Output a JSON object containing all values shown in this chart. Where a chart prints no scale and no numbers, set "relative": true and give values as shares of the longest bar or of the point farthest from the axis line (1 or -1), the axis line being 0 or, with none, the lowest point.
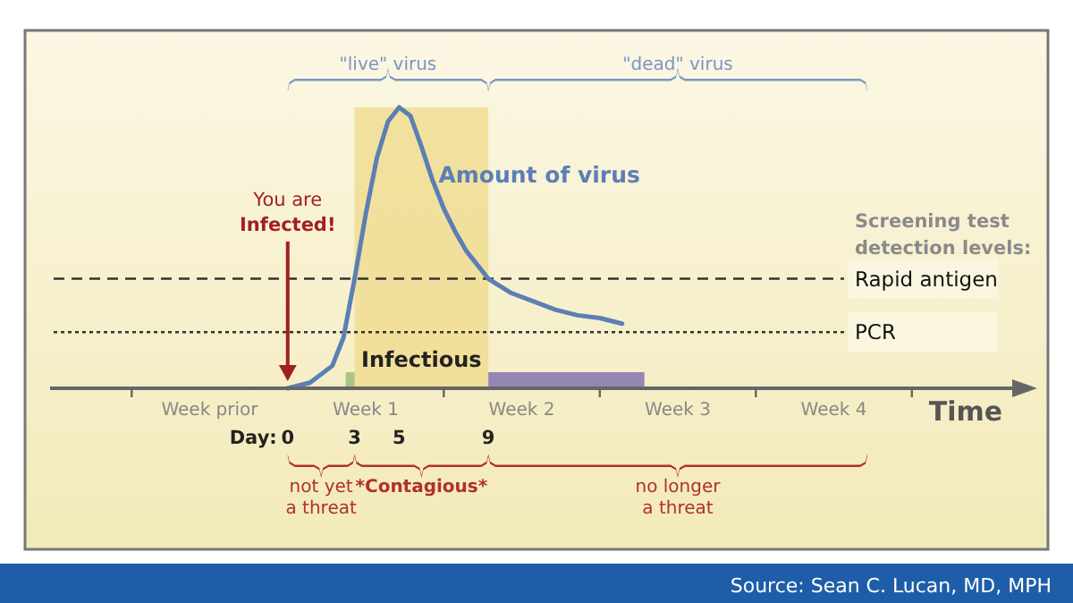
{
  "chart_data": {
    "type": "line",
    "relative": true,
    "xlabel": "Time",
    "xlim": [
      -10.5,
      32.5
    ],
    "xticks": [
      {
        "value": -7,
        "label": null
      },
      0,
      {
        "value": 7,
        "label": null
      },
      {
        "value": 14,
        "label": null
      },
      {
        "value": 21,
        "label": null
      },
      {
        "value": 28,
        "label": null
      },
      3,
      5,
      9
    ],
    "series": [
      {
        "name": "Amount of virus",
        "color": "#5b7fb5",
        "x": [
          0,
          1,
          2,
          2.5,
          3,
          3.5,
          4,
          4.5,
          5,
          5.5,
          6,
          6.5,
          7,
          7.5,
          8,
          8.5,
          9,
          10,
          11,
          12,
          13,
          14,
          15
        ],
        "values": [
          0,
          0.02,
          0.08,
          0.18,
          0.39,
          0.62,
          0.82,
          0.95,
          1,
          0.97,
          0.86,
          0.74,
          0.64,
          0.56,
          0.49,
          0.44,
          0.39,
          0.34,
          0.31,
          0.28,
          0.26,
          0.25,
          0.23
        ]
      }
    ],
    "ref_lines": [
      {
        "axis": "y",
        "value": 0.39,
        "label": "Rapid antigen",
        "line_style": "dashed",
        "color": "#333333"
      },
      {
        "axis": "y",
        "value": 0.2,
        "label": "PCR",
        "line_style": "dotted",
        "color": "#333333"
      }
    ],
    "bands": [
      {
        "axis": "x",
        "from": 3,
        "to": 9,
        "label": "Infectious",
        "color": "#efd98a"
      },
      {
        "axis": "x",
        "from": 2.6,
        "to": 3,
        "color": "#9cc27a"
      },
      {
        "axis": "x",
        "from": 9,
        "to": 16,
        "color": "#8a7bb0"
      }
    ],
    "annotations": [
      "\"live\" virus",
      "\"dead\" virus",
      "not yet a threat",
      "*Contagious*",
      "no longer a threat",
      "You are Infected!",
      "Screening test detection levels:",
      "Source: Sean C. Lucan, MD, MPH",
      "Week prior",
      "Week 1",
      "Week 2",
      "Week 3",
      "Week 4",
      "Day:"
    ]
  }
}
